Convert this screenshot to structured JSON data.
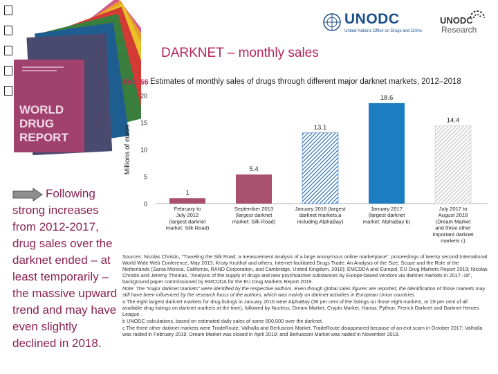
{
  "slide": {
    "title": "DARKNET – monthly sales",
    "body_text": "Following strong increases from 2012-2017, drug sales over the darknet ended – at least temporarily – the massive upward trend and may have even slightly declined in 2018."
  },
  "logos": {
    "unodc_name": "UNODC",
    "unodc_sub": "United Nations Office on Drugs and Crime",
    "research_name": "UNODC",
    "research_sub": "Research"
  },
  "report_cover": {
    "line1": "WORLD",
    "line2": "DRUG",
    "line3": "REPORT"
  },
  "figure": {
    "label": "FIG. 66",
    "title": "Estimates of monthly sales of drugs through different major darknet markets, 2012–2018"
  },
  "chart_data": {
    "type": "bar",
    "title": "Estimates of monthly sales of drugs through different major darknet markets, 2012–2018",
    "ylabel": "Millions of euros",
    "xlabel": "",
    "ylim": [
      0,
      20
    ],
    "yticks": [
      "0",
      "5",
      "10",
      "15",
      "20"
    ],
    "categories": [
      [
        "February to",
        "July 2012",
        "(largest darknet",
        "market: Silk Road)"
      ],
      [
        "September 2013",
        "(largest darknet",
        "market: Silk Road)"
      ],
      [
        "January 2016 (largest",
        "darknet markets,a",
        "including AlphaBay)"
      ],
      [
        "January 2017",
        "(largest darknet",
        "market: AlphaBay b)"
      ],
      [
        "July 2017 to",
        "August 2018",
        "(Dream Market",
        "and three other",
        "important darknet",
        "markets c)"
      ]
    ],
    "values": [
      1,
      5.4,
      13.1,
      18.6,
      14.4
    ],
    "value_labels": [
      "1",
      "5.4",
      "13.1",
      "18.6",
      "14.4"
    ],
    "bar_colors": [
      "#a8506e",
      "#a8506e",
      "#1c63b0",
      "#1d7fc1",
      "#c9c9c9"
    ],
    "bar_patterns": [
      "solid",
      "solid",
      "hatched",
      "solid",
      "hatched"
    ]
  },
  "notes": {
    "sources": "Sources: Nicolas Christin, \"Traveling the Silk Road: a measurement analysis of a large anonymous online marketplace\", proceedings of twenty second International World Wide Web Conference, May 2013; Kristy Kruithof and others, Internet-facilitated Drugs Trade: An Analysis of the Size, Scope and the Role of the Netherlands (Santa Monica, California, RAND Corporation, and Cambridge, United Kingdom, 2016); EMCDDA and Europol, EU Drug Markets Report 2019; Nicolas Christin and Jeremy Thomas, \"Analysis of the supply of drugs and new psychoactive substances by Europe-based vendors via darknet markets in 2017–18\", background paper commissioned by EMCDDA for the EU Drug Markets Report 2019.",
    "note": "Note: The \"major darknet markets\" were identified by the respective authors. Even though global sales figures are reported, the identification of those markets may still have been influenced by the research focus of the authors, which was mainly on darknet activities in European Union countries.",
    "a": "a The eight largest darknet markets for drug listings in January 2016 were AlphaBay (36 per cent of the listings on those eight markets, or 28 per cent of all available drug listings on darknet markets at the time), followed by Nucleus, Dream Market, Crypto Market, Hansa, Python, French Darknet and Darknet Heroes League.",
    "b": "b UNODC calculations, based on estimated daily sales of some 600,000 over the darknet.",
    "c": "c The three other darknet markets were TradeRoute, Valhalla and Berlusconi Market. TradeRoute disappeared because of an exit scam in October 2017; Valhalla was raided in February 2019; Dream Market was closed in April 2019; and Berlusconi Market was raided in November 2019."
  },
  "colors": {
    "title": "#b5245a",
    "body_text": "#8b2252",
    "unodc_blue": "#1b4e8a"
  }
}
